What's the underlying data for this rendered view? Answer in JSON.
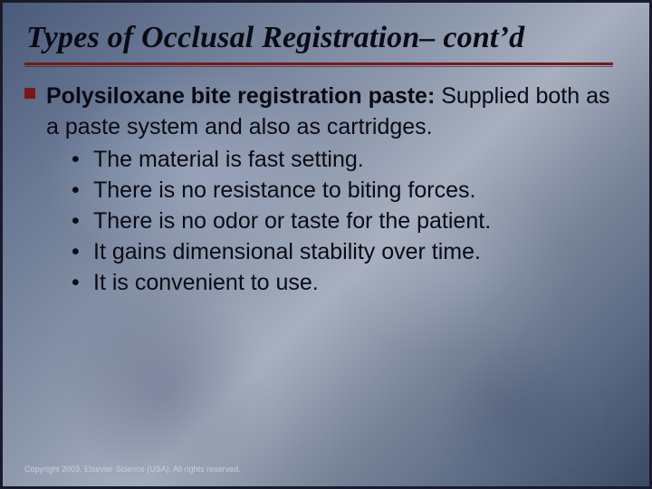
{
  "title": "Types of Occlusal Registration– cont’d",
  "colors": {
    "title_text": "#0a0a14",
    "rule": "#7a1818",
    "bullet_square": "#7a1818",
    "body_text": "#0a0a14",
    "copyright_text": "#c9cfdf",
    "border": "#1a1a2e",
    "bg_gradient_stops": [
      "#4a5a7a",
      "#6b7a95",
      "#8a95aa",
      "#a8b0c0",
      "#7a8599",
      "#5a6a85",
      "#3a4a65"
    ]
  },
  "typography": {
    "title_family": "Times New Roman",
    "title_style": "italic bold",
    "title_size_pt": 26,
    "body_family": "Verdana",
    "body_size_pt": 19,
    "copyright_size_pt": 7
  },
  "content": {
    "lead_bold": "Polysiloxane bite registration paste:",
    "lead_rest": " Supplied both as a paste system and also as cartridges.",
    "sub_items": [
      "The material is fast setting.",
      "There is no resistance to biting forces.",
      "There is no odor or taste for the patient.",
      "It gains dimensional stability over time.",
      "It is convenient to use."
    ],
    "sub_bullet_glyph": "•"
  },
  "copyright": "Copyright 2003, Elsevier Science (USA). All rights reserved."
}
